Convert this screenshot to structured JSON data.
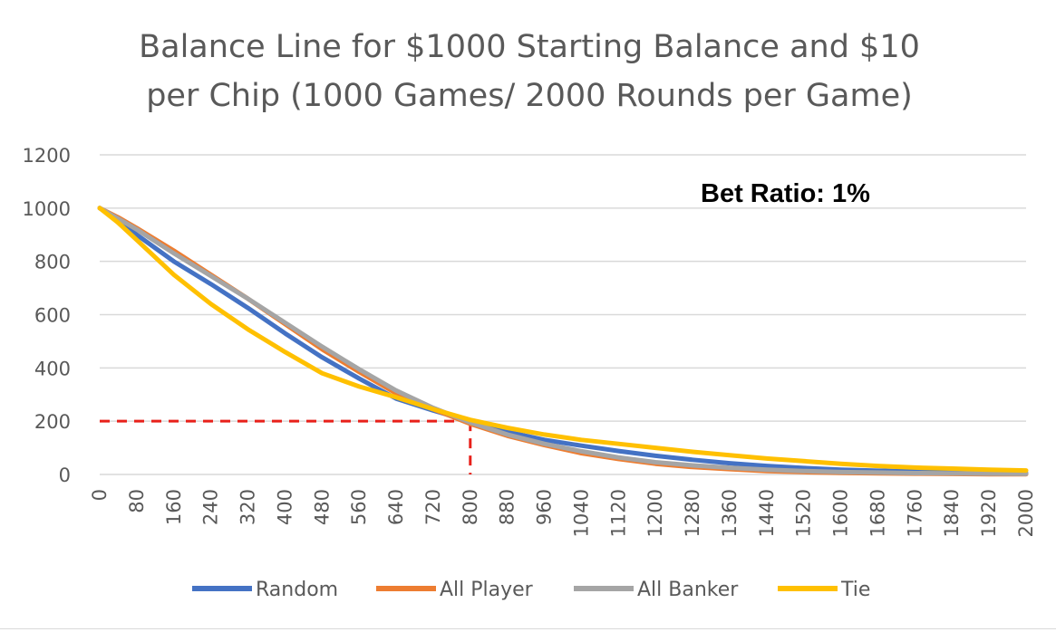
{
  "chart_data": {
    "type": "line",
    "title_lines": [
      "Balance Line for $1000 Starting Balance and $10",
      "per Chip (1000 Games/ 2000 Rounds per Game)"
    ],
    "xlabel": "",
    "ylabel": "",
    "xlim": [
      0,
      2000
    ],
    "ylim": [
      0,
      1200
    ],
    "y_ticks": [
      "0",
      "200",
      "400",
      "600",
      "800",
      "1000",
      "1200"
    ],
    "x_ticks": [
      "0",
      "80",
      "160",
      "240",
      "320",
      "400",
      "480",
      "560",
      "640",
      "720",
      "800",
      "880",
      "960",
      "1040",
      "1120",
      "1200",
      "1280",
      "1360",
      "1440",
      "1520",
      "1600",
      "1680",
      "1760",
      "1840",
      "1920",
      "2000"
    ],
    "grid": "horizontal",
    "legend_position": "bottom",
    "annotation": "Bet Ratio: 1%",
    "reference_point": {
      "x": 800,
      "y": 200
    },
    "reference_color": "#e8201a",
    "series": [
      {
        "name": "Random",
        "color": "#4472c4",
        "x": [
          0,
          40,
          80,
          160,
          240,
          320,
          400,
          480,
          560,
          640,
          720,
          800,
          880,
          960,
          1040,
          1120,
          1200,
          1280,
          1360,
          1440,
          1520,
          1600,
          1680,
          1760,
          1840,
          1920,
          2000
        ],
        "y": [
          1000,
          955,
          900,
          800,
          715,
          625,
          530,
          440,
          360,
          285,
          240,
          200,
          160,
          130,
          108,
          88,
          70,
          55,
          42,
          32,
          24,
          18,
          14,
          11,
          9,
          7,
          5
        ]
      },
      {
        "name": "All Player",
        "color": "#ed7d31",
        "x": [
          0,
          40,
          80,
          160,
          240,
          320,
          400,
          480,
          560,
          640,
          720,
          800,
          880,
          960,
          1040,
          1120,
          1200,
          1280,
          1360,
          1440,
          1520,
          1600,
          1680,
          1760,
          1840,
          1920,
          2000
        ],
        "y": [
          1000,
          965,
          925,
          840,
          750,
          660,
          565,
          470,
          385,
          305,
          245,
          190,
          145,
          110,
          80,
          58,
          40,
          28,
          20,
          13,
          9,
          6,
          4,
          3,
          2,
          1,
          1
        ]
      },
      {
        "name": "All Banker",
        "color": "#a5a5a5",
        "x": [
          0,
          40,
          80,
          160,
          240,
          320,
          400,
          480,
          560,
          640,
          720,
          800,
          880,
          960,
          1040,
          1120,
          1200,
          1280,
          1360,
          1440,
          1520,
          1600,
          1680,
          1760,
          1840,
          1920,
          2000
        ],
        "y": [
          1000,
          960,
          920,
          830,
          745,
          660,
          570,
          480,
          395,
          315,
          250,
          195,
          150,
          115,
          87,
          64,
          46,
          34,
          25,
          18,
          13,
          9,
          7,
          5,
          4,
          3,
          2
        ]
      },
      {
        "name": "Tie",
        "color": "#ffc000",
        "x": [
          0,
          40,
          80,
          160,
          240,
          320,
          400,
          480,
          560,
          640,
          720,
          800,
          880,
          960,
          1040,
          1120,
          1200,
          1280,
          1360,
          1440,
          1520,
          1600,
          1680,
          1760,
          1840,
          1920,
          2000
        ],
        "y": [
          1000,
          945,
          880,
          750,
          640,
          545,
          460,
          380,
          330,
          290,
          245,
          205,
          175,
          150,
          130,
          115,
          100,
          85,
          72,
          60,
          50,
          40,
          32,
          26,
          22,
          18,
          15
        ]
      }
    ]
  }
}
